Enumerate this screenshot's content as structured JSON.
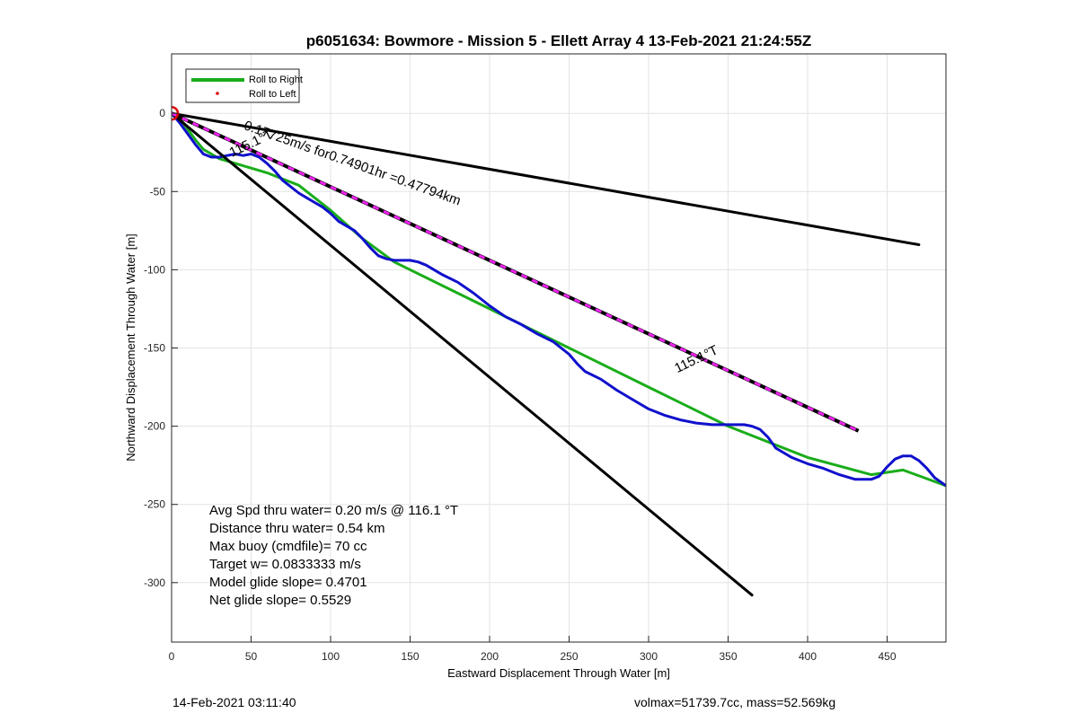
{
  "footer": {
    "date_label": "14-Feb-2021 03:11:40",
    "vol_mass_label": "volmax=51739.7cc, mass=52.569kg"
  },
  "colors": {
    "green": "#1aad1a",
    "blue": "#1010cc",
    "magenta": "#ee22ee",
    "black": "#000000",
    "red": "#dd0000"
  },
  "chart_data": {
    "type": "line",
    "title": "p6051634: Bowmore - Mission 5 - Ellett Array 4 13-Feb-2021 21:24:55Z",
    "xlabel": "Eastward Displacement Through Water [m]",
    "ylabel": "Northward Displacement Through Water [m]",
    "xlim": [
      0,
      487
    ],
    "ylim": [
      -338,
      38
    ],
    "xticks": [
      0,
      50,
      100,
      150,
      200,
      250,
      300,
      350,
      400,
      450
    ],
    "yticks": [
      0,
      -50,
      -100,
      -150,
      -200,
      -250,
      -300
    ],
    "grid": true,
    "legend": {
      "placement": "top-left",
      "entries": [
        "Roll to Right",
        "Roll to Left"
      ]
    },
    "series": [
      {
        "name": "Roll to Right",
        "kind": "line",
        "color": "#1aad1a",
        "x": [
          0,
          5,
          10,
          15,
          20,
          30,
          40,
          50,
          60,
          70,
          80,
          100,
          120,
          140,
          200,
          250,
          300,
          350,
          400,
          440,
          460,
          487
        ],
        "y": [
          0,
          -3,
          -10,
          -17,
          -23,
          -29,
          -32,
          -35,
          -38,
          -42,
          -46,
          -62,
          -80,
          -95,
          -125,
          -150,
          -175,
          -200,
          -220,
          -231,
          -228,
          -238
        ]
      },
      {
        "name": "Roll to Left",
        "kind": "points",
        "color": "#dd0000",
        "x": [
          0
        ],
        "y": [
          0
        ]
      },
      {
        "kind": "line",
        "color": "#1010cc",
        "x": [
          0,
          5,
          10,
          15,
          20,
          25,
          30,
          35,
          40,
          45,
          50,
          55,
          60,
          65,
          70,
          75,
          80,
          85,
          90,
          95,
          100,
          105,
          110,
          115,
          120,
          125,
          130,
          135,
          140,
          145,
          150,
          155,
          160,
          170,
          180,
          190,
          200,
          210,
          220,
          230,
          240,
          250,
          255,
          260,
          270,
          280,
          290,
          300,
          310,
          320,
          330,
          340,
          350,
          360,
          365,
          370,
          375,
          380,
          390,
          400,
          410,
          420,
          430,
          440,
          445,
          450,
          455,
          460,
          465,
          470,
          475,
          480,
          487
        ],
        "y": [
          0,
          -6,
          -13,
          -20,
          -26,
          -28,
          -28,
          -27,
          -26,
          -27,
          -26,
          -28,
          -32,
          -37,
          -43,
          -47,
          -51,
          -54,
          -57,
          -60,
          -64,
          -69,
          -72,
          -75,
          -80,
          -86,
          -91,
          -93,
          -94,
          -94,
          -94,
          -95,
          -97,
          -103,
          -108,
          -115,
          -123,
          -130,
          -135,
          -141,
          -146,
          -154,
          -160,
          -165,
          -170,
          -177,
          -183,
          -189,
          -193,
          -196,
          -198,
          -199,
          -199,
          -199,
          -200,
          -202,
          -207,
          -214,
          -220,
          -224,
          -227,
          -231,
          -234,
          -234,
          -232,
          -226,
          -221,
          -219,
          -219,
          -222,
          -227,
          -233,
          -238
        ]
      },
      {
        "kind": "line",
        "color": "#000000",
        "x": [
          0,
          470
        ],
        "y": [
          0,
          -84
        ]
      },
      {
        "kind": "line",
        "color": "#000000",
        "x": [
          0,
          365
        ],
        "y": [
          0,
          -308
        ]
      },
      {
        "kind": "dashed-line",
        "color": "#ee22ee",
        "x": [
          0,
          432
        ],
        "y": [
          0,
          -203
        ]
      }
    ],
    "annotations": [
      {
        "text": "0.17725m/s for0.74901hr =0.47794km",
        "x": 45,
        "y": -10,
        "rotate": -19.5
      },
      {
        "text": "115.1°T",
        "x": 38,
        "y": -28,
        "rotate": 25.5
      },
      {
        "text": "115.1°T",
        "x": 318,
        "y": -166,
        "rotate": 25.5
      }
    ],
    "stats_text": [
      "Avg Spd thru water=  0.20 m/s @ 116.1 °T",
      "Distance thru water=  0.54 km",
      "Max buoy (cmdfile)= 70 cc",
      "Target w= 0.0833333 m/s",
      "Model glide slope= 0.4701",
      "Net glide slope= 0.5529"
    ]
  }
}
